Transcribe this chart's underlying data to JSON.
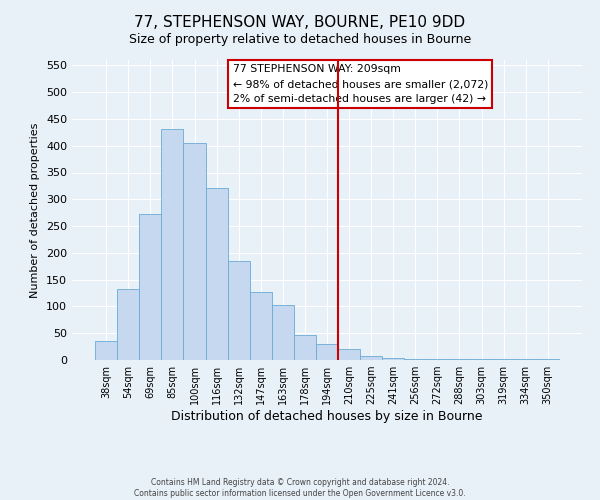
{
  "title": "77, STEPHENSON WAY, BOURNE, PE10 9DD",
  "subtitle": "Size of property relative to detached houses in Bourne",
  "xlabel": "Distribution of detached houses by size in Bourne",
  "ylabel": "Number of detached properties",
  "bar_labels": [
    "38sqm",
    "54sqm",
    "69sqm",
    "85sqm",
    "100sqm",
    "116sqm",
    "132sqm",
    "147sqm",
    "163sqm",
    "178sqm",
    "194sqm",
    "210sqm",
    "225sqm",
    "241sqm",
    "256sqm",
    "272sqm",
    "288sqm",
    "303sqm",
    "319sqm",
    "334sqm",
    "350sqm"
  ],
  "bar_heights": [
    35,
    133,
    272,
    432,
    405,
    322,
    184,
    127,
    103,
    46,
    30,
    20,
    8,
    3,
    2,
    1,
    1,
    1,
    1,
    1,
    1
  ],
  "bar_color": "#c5d8ef",
  "bar_edge_color": "#6aaad4",
  "vline_x_index": 11,
  "vline_color": "#cc0000",
  "annotation_title": "77 STEPHENSON WAY: 209sqm",
  "annotation_line1": "← 98% of detached houses are smaller (2,072)",
  "annotation_line2": "2% of semi-detached houses are larger (42) →",
  "annotation_box_color": "#ffffff",
  "annotation_box_edge": "#cc0000",
  "ylim": [
    0,
    560
  ],
  "yticks": [
    0,
    50,
    100,
    150,
    200,
    250,
    300,
    350,
    400,
    450,
    500,
    550
  ],
  "footer1": "Contains HM Land Registry data © Crown copyright and database right 2024.",
  "footer2": "Contains public sector information licensed under the Open Government Licence v3.0.",
  "bg_color": "#e8f0f8",
  "plot_bg_color": "#e8f0f8",
  "title_fontsize": 11,
  "subtitle_fontsize": 9
}
